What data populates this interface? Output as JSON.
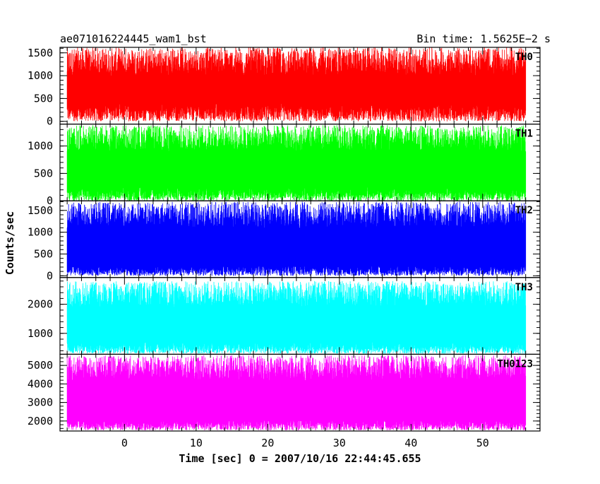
{
  "header": {
    "left_title": "ae071016224445_wam1_bst",
    "right_title": "Bin time: 1.5625E−2 s"
  },
  "chart_data": {
    "type": "line",
    "title": "ae071016224445_wam1_bst",
    "subtitle": "Bin time: 1.5625E−2 s",
    "xlabel": "Time [sec] 0 = 2007/10/16 22:44:45.655",
    "ylabel": "Counts/sec",
    "xlim": [
      -9,
      58
    ],
    "x_range_data": [
      -8,
      56
    ],
    "x_ticks": [
      0,
      10,
      20,
      30,
      40,
      50
    ],
    "x_tick_labels": [
      "0",
      "10",
      "20",
      "30",
      "40",
      "50"
    ],
    "grid": false,
    "legend": "none",
    "panels": [
      {
        "name": "TH0",
        "color": "#ff0000",
        "ylim": [
          -60,
          1620
        ],
        "y_ticks": [
          0,
          500,
          1000,
          1500
        ],
        "y_tick_labels": [
          "0",
          "500",
          "1000",
          "1500"
        ],
        "range_low": [
          0,
          400
        ],
        "range_high": [
          1000,
          1620
        ]
      },
      {
        "name": "TH1",
        "color": "#00ff00",
        "ylim": [
          0,
          1400
        ],
        "y_ticks": [
          0,
          500,
          1000
        ],
        "y_tick_labels": [
          "0",
          "500",
          "1000"
        ],
        "range_low": [
          0,
          250
        ],
        "range_high": [
          900,
          1380
        ]
      },
      {
        "name": "TH2",
        "color": "#0000ff",
        "ylim": [
          -40,
          1720
        ],
        "y_ticks": [
          0,
          500,
          1000,
          1500
        ],
        "y_tick_labels": [
          "0",
          "500",
          "1000",
          "1500"
        ],
        "range_low": [
          0,
          250
        ],
        "range_high": [
          1100,
          1700
        ]
      },
      {
        "name": "TH3",
        "color": "#00ffff",
        "ylim": [
          280,
          2920
        ],
        "y_ticks": [
          1000,
          2000
        ],
        "y_tick_labels": [
          "1000",
          "2000"
        ],
        "range_low": [
          300,
          700
        ],
        "range_high": [
          1900,
          2800
        ]
      },
      {
        "name": "TH0123",
        "color": "#ff00ff",
        "ylim": [
          1460,
          5600
        ],
        "y_ticks": [
          2000,
          3000,
          4000,
          5000
        ],
        "y_tick_labels": [
          "2000",
          "3000",
          "4000",
          "5000"
        ],
        "range_low": [
          1500,
          2100
        ],
        "range_high": [
          4200,
          5550
        ]
      }
    ]
  }
}
